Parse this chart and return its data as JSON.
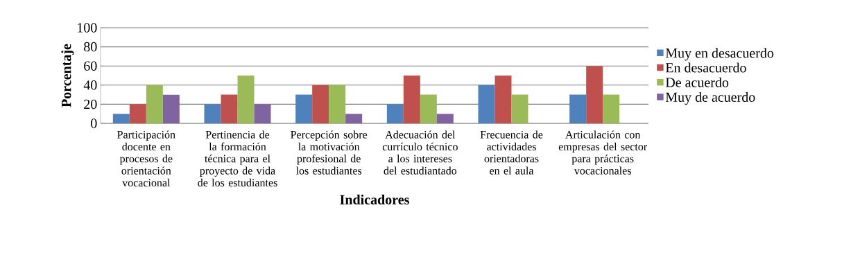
{
  "chart_data": {
    "type": "bar",
    "xlabel": "Indicadores",
    "ylabel": "Porcentaje",
    "categories": [
      "Participación docente en procesos de orientación vocacional",
      "Pertinencia de la formación técnica para el proyecto de vida de los estudiantes",
      "Percepción sobre la motivación profesional de los estudiantes",
      "Adecuación del currículo técnico a los intereses del estudiantado",
      "Frecuencia de actividades orientadoras en el aula",
      "Articulación con empresas del sector para prácticas vocacionales"
    ],
    "series": [
      {
        "name": "Muy en desacuerdo",
        "color": "#4f81bd",
        "values": [
          10,
          20,
          30,
          20,
          40,
          30
        ]
      },
      {
        "name": "En desacuerdo",
        "color": "#c0504d",
        "values": [
          20,
          30,
          40,
          50,
          50,
          60
        ]
      },
      {
        "name": "De acuerdo",
        "color": "#9bbb59",
        "values": [
          40,
          50,
          40,
          30,
          30,
          30
        ]
      },
      {
        "name": "Muy de acuerdo",
        "color": "#8064a2",
        "values": [
          30,
          20,
          10,
          10,
          0,
          0
        ]
      }
    ],
    "ylim": [
      0,
      100
    ],
    "yticks": [
      0,
      20,
      40,
      60,
      80,
      100
    ],
    "grid": "y",
    "legend": "right"
  }
}
